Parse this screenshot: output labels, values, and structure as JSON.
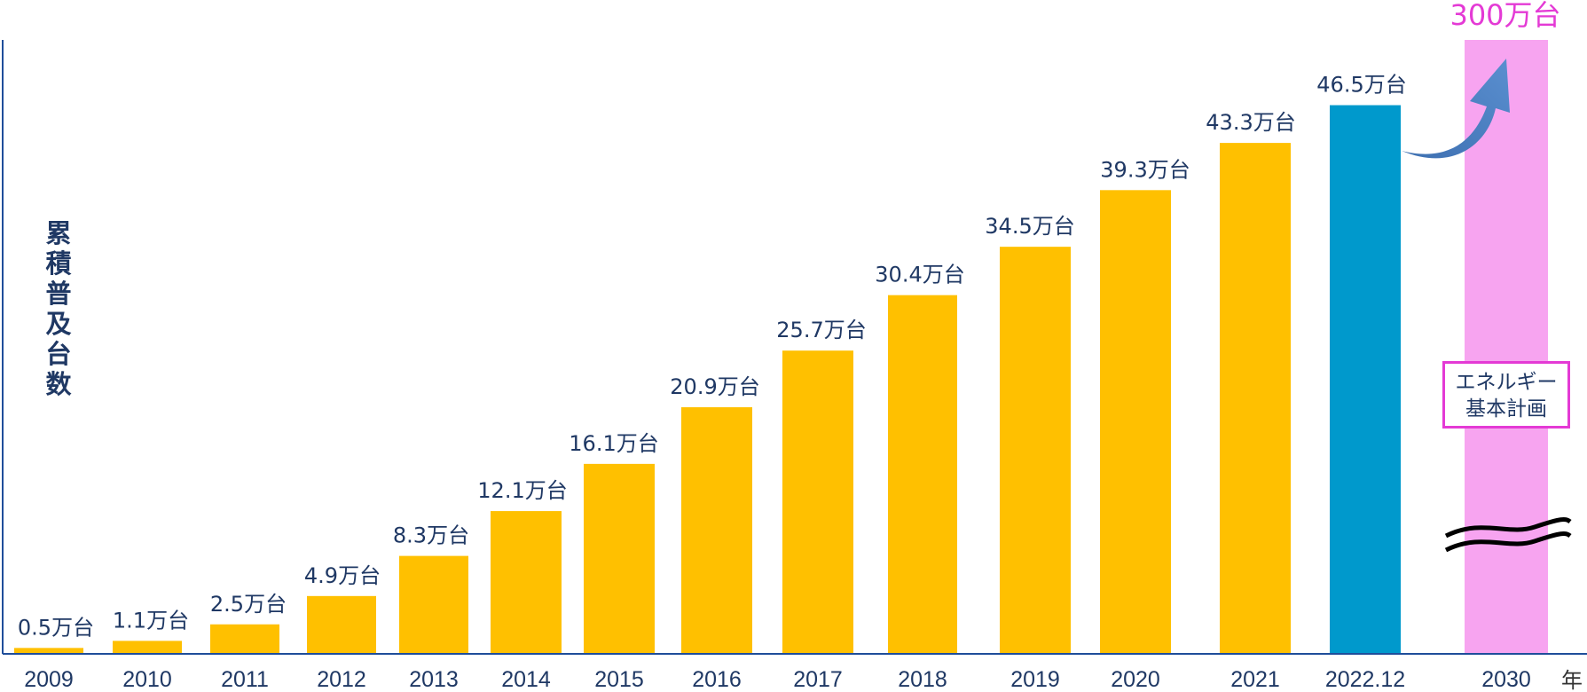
{
  "chart_data": {
    "type": "bar",
    "ylabel": "累積普及台数",
    "xunit": "年",
    "categories": [
      "2009",
      "2010",
      "2011",
      "2012",
      "2013",
      "2014",
      "2015",
      "2016",
      "2017",
      "2018",
      "2019",
      "2020",
      "2021",
      "2022.12",
      "2030"
    ],
    "values": [
      0.5,
      1.1,
      2.5,
      4.9,
      8.3,
      12.1,
      16.1,
      20.9,
      25.7,
      30.4,
      34.5,
      39.3,
      43.3,
      46.5,
      300
    ],
    "data_labels": [
      "0.5万台",
      "1.1万台",
      "2.5万台",
      "4.9万台",
      "8.3万台",
      "12.1万台",
      "16.1万台",
      "20.9万台",
      "25.7万台",
      "30.4万台",
      "34.5万台",
      "39.3万台",
      "43.3万台",
      "46.5万台",
      "300万台"
    ],
    "ylim": [
      0,
      50
    ],
    "axis_break": true,
    "colors": {
      "bar": "#ffc000",
      "latest": "#0099cc",
      "target": "#f7a4f0",
      "label": "#1f3864",
      "target_label": "#e43ad5",
      "arrow": "#4a7ec2"
    },
    "target_annotation": [
      "エネルギー",
      "基本計画"
    ]
  }
}
